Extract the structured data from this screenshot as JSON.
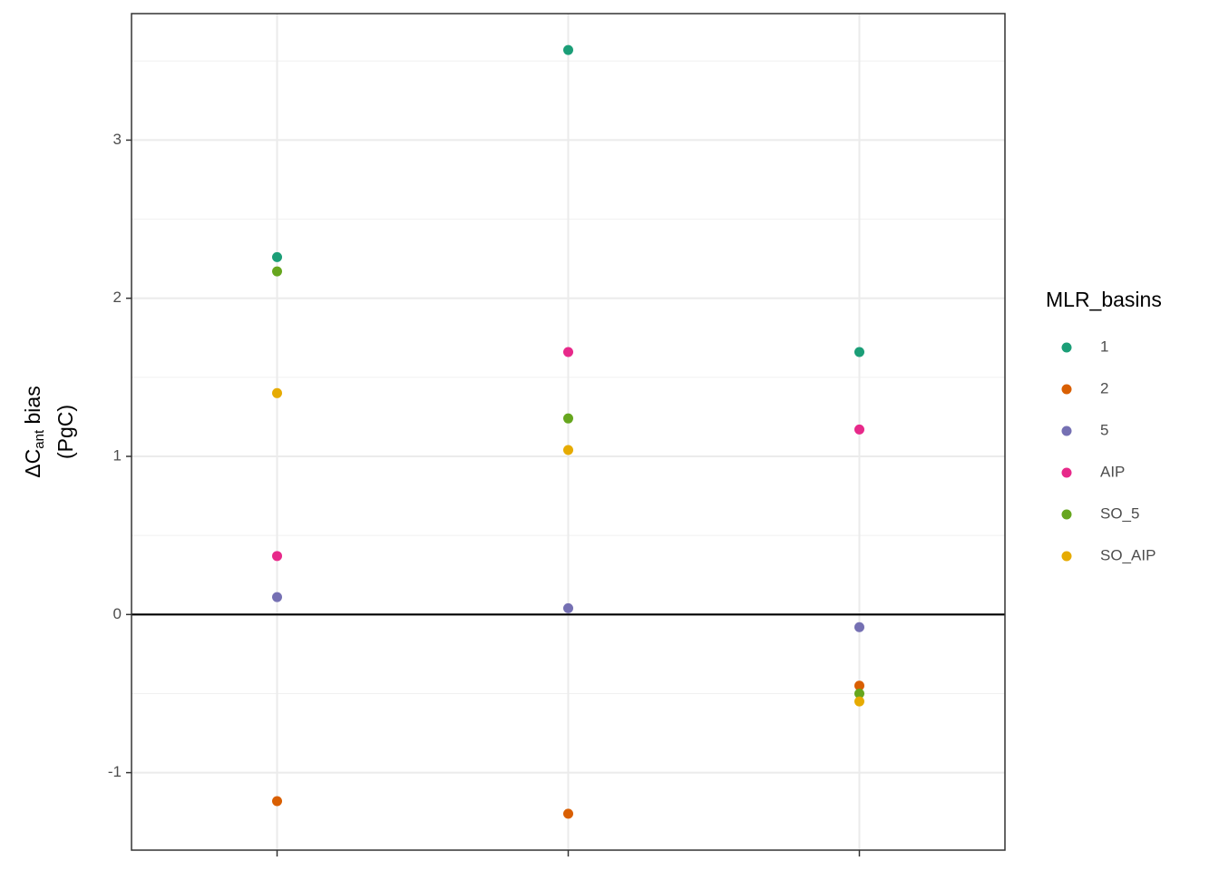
{
  "chart_data": {
    "type": "scatter",
    "ylabel": {
      "main": "ΔC",
      "sub": "ant",
      "rest": " bias",
      "line2": "(PgC)"
    },
    "legend_title": "MLR_basins",
    "legend_position": "right",
    "categories": [
      null,
      null,
      null
    ],
    "series": [
      {
        "name": "1",
        "color": "#1b9e77",
        "values": [
          2.26,
          3.57,
          1.66
        ]
      },
      {
        "name": "2",
        "color": "#d95f02",
        "values": [
          -1.18,
          -1.26,
          -0.45
        ]
      },
      {
        "name": "5",
        "color": "#7570b3",
        "values": [
          0.11,
          0.04,
          -0.08
        ]
      },
      {
        "name": "AIP",
        "color": "#e7298a",
        "values": [
          0.37,
          1.66,
          1.17
        ]
      },
      {
        "name": "SO_5",
        "color": "#66a61e",
        "values": [
          2.17,
          1.24,
          -0.5
        ]
      },
      {
        "name": "SO_AIP",
        "color": "#e6ab02",
        "values": [
          1.4,
          1.04,
          -0.55
        ]
      }
    ],
    "hline": 0,
    "ylim": [
      -1.49,
      3.8
    ],
    "yticks": [
      -1,
      0,
      1,
      2,
      3
    ],
    "grid": true
  }
}
